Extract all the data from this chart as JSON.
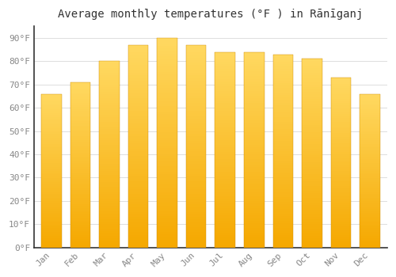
{
  "title": "Average monthly temperatures (°F ) in Rānīganj",
  "months": [
    "Jan",
    "Feb",
    "Mar",
    "Apr",
    "May",
    "Jun",
    "Jul",
    "Aug",
    "Sep",
    "Oct",
    "Nov",
    "Dec"
  ],
  "values": [
    66,
    71,
    80,
    87,
    90,
    87,
    84,
    84,
    83,
    81,
    73,
    66
  ],
  "bar_color_bottom": "#F5A800",
  "bar_color_top": "#FFD860",
  "ylim": [
    0,
    95
  ],
  "yticks": [
    0,
    10,
    20,
    30,
    40,
    50,
    60,
    70,
    80,
    90
  ],
  "ytick_labels": [
    "0°F",
    "10°F",
    "20°F",
    "30°F",
    "40°F",
    "50°F",
    "60°F",
    "70°F",
    "80°F",
    "90°F"
  ],
  "background_color": "#FFFFFF",
  "grid_color": "#DDDDDD",
  "title_fontsize": 10,
  "tick_fontsize": 8,
  "tick_color": "#888888",
  "font_family": "monospace",
  "bar_width": 0.7,
  "left_spine_color": "#333333"
}
